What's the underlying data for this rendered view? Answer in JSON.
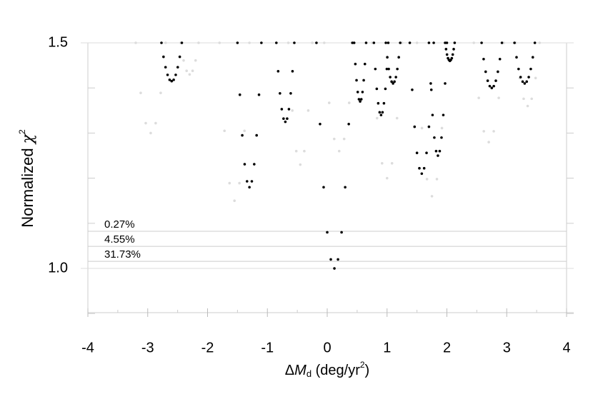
{
  "chart_data": {
    "type": "scatter",
    "x_label": [
      "Δ",
      "M",
      "d",
      " (deg/yr",
      "2",
      ")"
    ],
    "y_label": [
      "Normalized ",
      "χ",
      "2"
    ],
    "xlim": [
      -4,
      4
    ],
    "ylim": [
      0.902,
      1.5
    ],
    "xticks": [
      -4,
      -3,
      -2,
      -1,
      0,
      1,
      2,
      3,
      4
    ],
    "xminor": [
      -3.5,
      -2.5,
      -1.5,
      -0.5,
      0.5,
      1.5,
      2.5,
      3.5
    ],
    "yticks": [
      {
        "value": 1.0,
        "label": "1.0"
      },
      {
        "value": 1.5,
        "label": "1.5"
      }
    ],
    "yminor": [
      0.9,
      1.1,
      1.2,
      1.3,
      1.4
    ],
    "hlines": [
      {
        "value": 1.0823,
        "label": "0.27%"
      },
      {
        "value": 1.049,
        "label": "4.55%"
      },
      {
        "value": 1.0158,
        "label": "31.73%"
      }
    ],
    "series": [
      {
        "color": "#dcdcdc",
        "x": [
          -3.2,
          -3.117,
          -3.033,
          -2.95,
          -2.867,
          -2.783,
          -2.7,
          -1.8,
          -1.717,
          -1.633,
          -1.55,
          -1.467,
          -1.383,
          -1.3,
          -0.65,
          -0.583,
          -0.517,
          -0.45,
          -0.383,
          -0.317,
          -0.25,
          -0.05,
          0.033,
          0.117,
          0.2,
          0.283,
          0.367,
          0.45,
          0.75,
          0.833,
          0.917,
          1.0,
          1.083,
          1.167,
          1.25,
          1.5,
          1.583,
          1.667,
          1.75,
          1.833,
          1.917,
          2.0,
          2.45,
          2.533,
          2.617,
          2.7,
          2.783,
          2.867,
          2.95,
          3.15,
          3.217,
          3.283,
          3.35,
          3.417,
          3.483,
          3.55,
          -2.45,
          -2.4,
          -2.35,
          -2.3,
          -2.25,
          -2.2,
          -2.15
        ],
        "y": [
          1.5,
          1.389,
          1.322,
          1.3,
          1.322,
          1.389,
          1.5,
          1.5,
          1.305,
          1.189,
          1.15,
          1.189,
          1.305,
          1.5,
          1.5,
          1.35,
          1.26,
          1.23,
          1.26,
          1.35,
          1.5,
          1.5,
          1.367,
          1.287,
          1.26,
          1.287,
          1.367,
          1.5,
          1.5,
          1.333,
          1.233,
          1.2,
          1.233,
          1.333,
          1.5,
          1.5,
          1.311,
          1.198,
          1.16,
          1.198,
          1.311,
          1.5,
          1.5,
          1.378,
          1.304,
          1.28,
          1.304,
          1.378,
          1.5,
          1.5,
          1.422,
          1.376,
          1.36,
          1.376,
          1.422,
          1.5,
          1.5,
          1.461,
          1.438,
          1.43,
          1.438,
          1.461,
          1.5
        ]
      },
      {
        "color": "#000000",
        "x": [
          -2.77,
          -2.736,
          -2.702,
          -2.668,
          -2.634,
          -2.6,
          -2.566,
          -2.532,
          -2.498,
          -2.464,
          -2.43,
          -1.5,
          -1.46,
          -1.42,
          -1.38,
          -1.34,
          -1.3,
          -1.26,
          -1.22,
          -1.18,
          -1.14,
          -1.1,
          -0.85,
          -0.82,
          -0.79,
          -0.76,
          -0.73,
          -0.7,
          -0.67,
          -0.64,
          -0.61,
          -0.58,
          -0.55,
          -0.18,
          -0.12,
          -0.06,
          0,
          0.06,
          0.12,
          0.18,
          0.24,
          0.3,
          0.36,
          0.42,
          0.45,
          0.47,
          0.49,
          0.51,
          0.53,
          0.55,
          0.57,
          0.59,
          0.61,
          0.63,
          0.65,
          0.78,
          0.804,
          0.828,
          0.852,
          0.876,
          0.9,
          0.924,
          0.948,
          0.972,
          0.996,
          1.02,
          0.98,
          1.004,
          1.028,
          1.052,
          1.076,
          1.1,
          1.124,
          1.148,
          1.172,
          1.196,
          1.22,
          1.38,
          1.42,
          1.46,
          1.5,
          1.54,
          1.58,
          1.62,
          1.66,
          1.7,
          1.74,
          1.78,
          1.7,
          1.73,
          1.76,
          1.79,
          1.82,
          1.85,
          1.88,
          1.91,
          1.94,
          1.97,
          2.0,
          1.97,
          1.986,
          2.002,
          2.018,
          2.034,
          2.05,
          2.066,
          2.082,
          2.098,
          2.114,
          2.13,
          2.58,
          2.614,
          2.648,
          2.682,
          2.716,
          2.75,
          2.784,
          2.818,
          2.852,
          2.886,
          2.92,
          3.13,
          3.164,
          3.198,
          3.232,
          3.266,
          3.3,
          3.334,
          3.368,
          3.402,
          3.436,
          3.47
        ],
        "y": [
          1.5,
          1.469,
          1.446,
          1.429,
          1.418,
          1.415,
          1.418,
          1.429,
          1.446,
          1.469,
          1.5,
          1.5,
          1.385,
          1.295,
          1.231,
          1.193,
          1.18,
          1.193,
          1.231,
          1.295,
          1.385,
          1.5,
          1.5,
          1.437,
          1.388,
          1.353,
          1.332,
          1.325,
          1.332,
          1.353,
          1.388,
          1.437,
          1.5,
          1.5,
          1.32,
          1.18,
          1.08,
          1.02,
          1.0,
          1.02,
          1.08,
          1.18,
          1.32,
          1.5,
          1.5,
          1.453,
          1.417,
          1.391,
          1.375,
          1.37,
          1.375,
          1.391,
          1.417,
          1.453,
          1.5,
          1.5,
          1.442,
          1.398,
          1.366,
          1.346,
          1.34,
          1.346,
          1.366,
          1.398,
          1.442,
          1.5,
          1.5,
          1.468,
          1.442,
          1.424,
          1.414,
          1.41,
          1.414,
          1.424,
          1.442,
          1.468,
          1.5,
          1.5,
          1.396,
          1.314,
          1.256,
          1.222,
          1.21,
          1.222,
          1.256,
          1.314,
          1.396,
          1.5,
          1.5,
          1.41,
          1.34,
          1.29,
          1.26,
          1.25,
          1.26,
          1.29,
          1.34,
          1.41,
          1.5,
          1.5,
          1.486,
          1.474,
          1.466,
          1.462,
          1.46,
          1.462,
          1.466,
          1.474,
          1.486,
          1.5,
          1.5,
          1.464,
          1.436,
          1.416,
          1.404,
          1.4,
          1.404,
          1.416,
          1.436,
          1.464,
          1.5,
          1.5,
          1.468,
          1.442,
          1.424,
          1.414,
          1.41,
          1.414,
          1.424,
          1.442,
          1.468,
          1.5
        ]
      }
    ]
  }
}
